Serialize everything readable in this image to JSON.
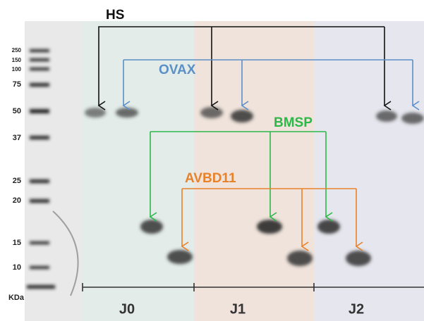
{
  "proteins": [
    "HS",
    "OVAX",
    "BMSP",
    "AVBD11"
  ],
  "ladder": {
    "unit": "KDa",
    "marks": [
      250,
      150,
      100,
      75,
      50,
      37,
      25,
      20,
      15,
      10
    ]
  },
  "groups": [
    "J0",
    "J1",
    "J2"
  ]
}
